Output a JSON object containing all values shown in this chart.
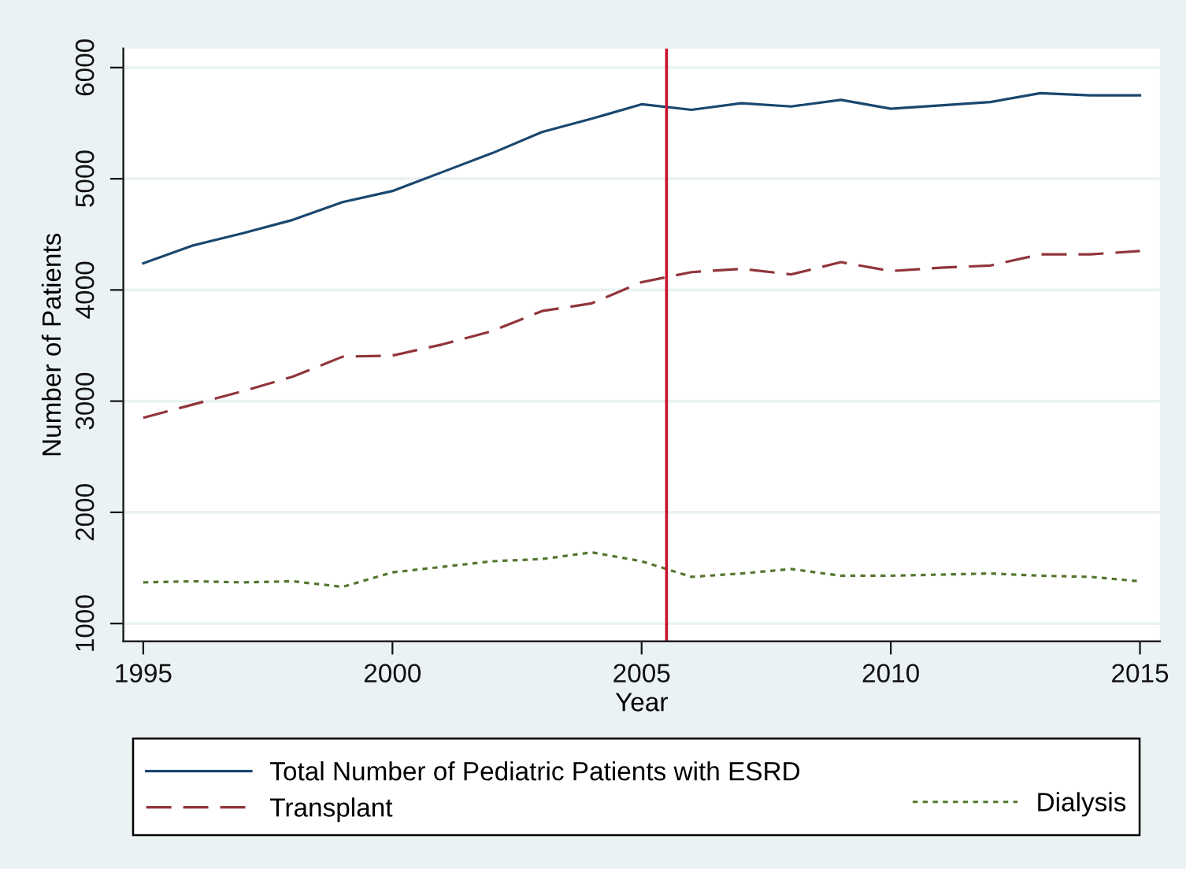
{
  "chart_data": {
    "type": "line",
    "xlabel": "Year",
    "ylabel": "Number of Patients",
    "x": [
      1995,
      1996,
      1997,
      1998,
      1999,
      2000,
      2001,
      2002,
      2003,
      2004,
      2005,
      2006,
      2007,
      2008,
      2009,
      2010,
      2011,
      2012,
      2013,
      2014,
      2015
    ],
    "series": [
      {
        "name": "Total Number of Pediatric Patients with ESRD",
        "color": "#1a476f",
        "line_style": "solid",
        "values": [
          4240,
          4400,
          4510,
          4630,
          4790,
          4890,
          5060,
          5230,
          5420,
          5540,
          5670,
          5620,
          5680,
          5650,
          5710,
          5630,
          5660,
          5690,
          5770,
          5750,
          5750
        ]
      },
      {
        "name": "Transplant",
        "color": "#90353b",
        "line_style": "dashed",
        "values": [
          2850,
          2970,
          3090,
          3220,
          3400,
          3410,
          3510,
          3630,
          3810,
          3880,
          4070,
          4160,
          4190,
          4140,
          4250,
          4170,
          4200,
          4220,
          4320,
          4320,
          4350
        ]
      },
      {
        "name": "Dialysis",
        "color": "#55752f",
        "line_style": "dotted",
        "values": [
          1370,
          1380,
          1370,
          1380,
          1330,
          1460,
          1510,
          1560,
          1580,
          1640,
          1560,
          1420,
          1450,
          1490,
          1430,
          1430,
          1440,
          1450,
          1430,
          1420,
          1380
        ]
      }
    ],
    "xlim": [
      1994.6,
      2015.4
    ],
    "ylim": [
      840,
      6170
    ],
    "xticks": [
      1995,
      2000,
      2005,
      2010,
      2015
    ],
    "yticks": [
      1000,
      2000,
      3000,
      4000,
      5000,
      6000
    ],
    "grid": "y",
    "legend": "bottom",
    "ref_lines": [
      {
        "axis": "x",
        "value": 2005.5,
        "color": "#c8102e"
      }
    ]
  }
}
